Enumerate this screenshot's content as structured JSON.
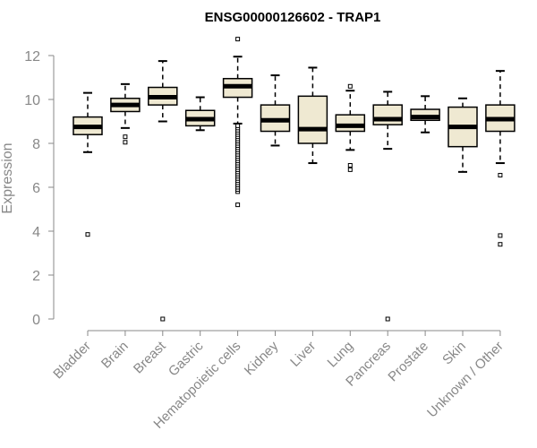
{
  "chart_data": {
    "type": "boxplot",
    "title": "ENSG00000126602 - TRAP1",
    "xlabel": "",
    "ylabel": "Expression",
    "ylim": [
      0,
      12
    ],
    "yticks": [
      "0",
      "2",
      "4",
      "6",
      "8",
      "10",
      "12"
    ],
    "grid": false,
    "legend": "none",
    "colors": {
      "box_fill": "#efe9d2",
      "stroke": "#000000",
      "axis": "#888888"
    },
    "categories": [
      "Bladder",
      "Brain",
      "Breast",
      "Gastric",
      "Hematopoietic cells",
      "Kidney",
      "Liver",
      "Lung",
      "Pancreas",
      "Prostate",
      "Skin",
      "Unknown / Other"
    ],
    "boxes": [
      {
        "category": "Bladder",
        "whisker_low": 7.6,
        "q1": 8.4,
        "median": 8.75,
        "q3": 9.2,
        "whisker_high": 10.3,
        "outliers": [
          3.85
        ]
      },
      {
        "category": "Brain",
        "whisker_low": 8.7,
        "q1": 9.45,
        "median": 9.75,
        "q3": 10.05,
        "whisker_high": 10.7,
        "outliers": [
          8.05,
          8.3
        ]
      },
      {
        "category": "Breast",
        "whisker_low": 9.0,
        "q1": 9.75,
        "median": 10.1,
        "q3": 10.55,
        "whisker_high": 11.75,
        "outliers": [
          0.0
        ]
      },
      {
        "category": "Gastric",
        "whisker_low": 8.6,
        "q1": 8.8,
        "median": 9.1,
        "q3": 9.5,
        "whisker_high": 10.1,
        "outliers": []
      },
      {
        "category": "Hematopoietic cells",
        "whisker_low": 8.9,
        "q1": 10.1,
        "median": 10.6,
        "q3": 10.95,
        "whisker_high": 11.95,
        "outliers": [
          12.75,
          5.2,
          5.8,
          5.9,
          6.0,
          6.1,
          6.2,
          6.3,
          6.4,
          6.5,
          6.6,
          6.7,
          6.8,
          6.9,
          7.0,
          7.1,
          7.2,
          7.3,
          7.4,
          7.5,
          7.6,
          7.7,
          7.8,
          7.9,
          8.0,
          8.1,
          8.2,
          8.3,
          8.4,
          8.5,
          8.6,
          8.7,
          8.8
        ]
      },
      {
        "category": "Kidney",
        "whisker_low": 7.9,
        "q1": 8.55,
        "median": 9.05,
        "q3": 9.75,
        "whisker_high": 11.1,
        "outliers": []
      },
      {
        "category": "Liver",
        "whisker_low": 7.1,
        "q1": 8.0,
        "median": 8.65,
        "q3": 10.15,
        "whisker_high": 11.45,
        "outliers": []
      },
      {
        "category": "Lung",
        "whisker_low": 7.7,
        "q1": 8.55,
        "median": 8.8,
        "q3": 9.3,
        "whisker_high": 10.4,
        "outliers": [
          10.6,
          6.8,
          7.0
        ]
      },
      {
        "category": "Pancreas",
        "whisker_low": 7.75,
        "q1": 8.85,
        "median": 9.1,
        "q3": 9.75,
        "whisker_high": 10.35,
        "outliers": [
          0.0
        ]
      },
      {
        "category": "Prostate",
        "whisker_low": 8.5,
        "q1": 9.05,
        "median": 9.2,
        "q3": 9.55,
        "whisker_high": 10.15,
        "outliers": []
      },
      {
        "category": "Skin",
        "whisker_low": 6.7,
        "q1": 7.85,
        "median": 8.75,
        "q3": 9.65,
        "whisker_high": 10.05,
        "outliers": []
      },
      {
        "category": "Unknown / Other",
        "whisker_low": 7.1,
        "q1": 8.55,
        "median": 9.1,
        "q3": 9.75,
        "whisker_high": 11.3,
        "outliers": [
          6.55,
          3.8,
          3.4
        ]
      }
    ]
  }
}
